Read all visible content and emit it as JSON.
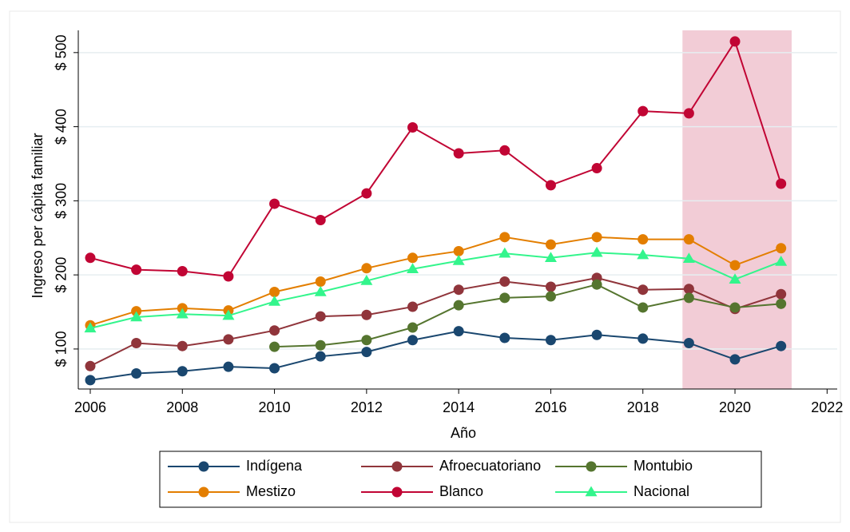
{
  "chart_data": {
    "type": "line",
    "x": [
      2006,
      2007,
      2008,
      2009,
      2010,
      2011,
      2012,
      2013,
      2014,
      2015,
      2016,
      2017,
      2018,
      2019,
      2020,
      2021
    ],
    "xlabel": "Año",
    "ylabel": "Ingreso per cápita familiar",
    "xlim": [
      2005.74,
      2022.22
    ],
    "ylim": [
      46,
      530
    ],
    "xticks": [
      2006,
      2008,
      2010,
      2012,
      2014,
      2016,
      2018,
      2020,
      2022
    ],
    "yticks": [
      {
        "value": 100,
        "label": "$ 100"
      },
      {
        "value": 200,
        "label": "$ 200"
      },
      {
        "value": 300,
        "label": "$ 300"
      },
      {
        "value": 400,
        "label": "$ 400"
      },
      {
        "value": 500,
        "label": "$ 500"
      }
    ],
    "grid": true,
    "legend": "bottom",
    "shaded_region": {
      "x": [
        2018.86,
        2021.23
      ],
      "color": "#f2ccd6"
    },
    "series": [
      {
        "name": "Indígena",
        "color": "#1a476f",
        "marker": "circle",
        "values": [
          58,
          67,
          70,
          76,
          74,
          90,
          96,
          112,
          124,
          115,
          112,
          119,
          114,
          108,
          86,
          104
        ]
      },
      {
        "name": "Afroecuatoriano",
        "color": "#90353b",
        "marker": "circle",
        "values": [
          77,
          108,
          104,
          113,
          125,
          144,
          146,
          157,
          180,
          191,
          184,
          196,
          180,
          181,
          154,
          174
        ]
      },
      {
        "name": "Montubio",
        "color": "#55752f",
        "marker": "circle",
        "values": [
          null,
          null,
          null,
          null,
          103,
          105,
          112,
          129,
          159,
          169,
          171,
          187,
          156,
          169,
          156,
          161
        ]
      },
      {
        "name": "Mestizo",
        "color": "#e37e00",
        "marker": "circle",
        "values": [
          132,
          151,
          155,
          152,
          177,
          191,
          209,
          223,
          232,
          251,
          241,
          251,
          248,
          248,
          213,
          236
        ]
      },
      {
        "name": "Blanco",
        "color": "#c10534",
        "marker": "circle",
        "values": [
          223,
          207,
          205,
          198,
          296,
          274,
          310,
          399,
          364,
          368,
          321,
          344,
          421,
          418,
          515,
          323
        ]
      },
      {
        "name": "Nacional",
        "color": "#33f58c",
        "marker": "triangle",
        "values": [
          128,
          143,
          147,
          145,
          164,
          177,
          192,
          208,
          219,
          229,
          223,
          230,
          227,
          222,
          194,
          218
        ]
      }
    ]
  }
}
